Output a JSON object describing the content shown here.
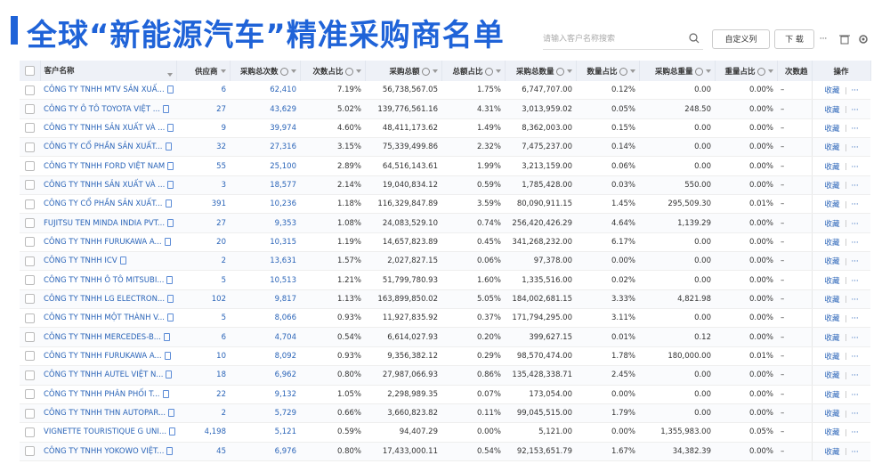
{
  "header": {
    "title": "全球“新能源汽车”精准采购商名单",
    "search_placeholder": "请输入客户名称搜索",
    "buttons": [
      "自定义列",
      "下 载",
      "···"
    ]
  },
  "table": {
    "columns": [
      "客户名称",
      "供应商",
      "采购总次数",
      "次数占比",
      "采购总额",
      "总额占比",
      "采购总数量",
      "数量占比",
      "采购总重量",
      "重量占比",
      "次数趋",
      "操作"
    ],
    "rows": [
      [
        "CÔNG TY TNHH MTV SẢN XUẤ...",
        "6",
        "62,410",
        "7.19%",
        "56,738,567.05",
        "1.75%",
        "6,747,707.00",
        "0.12%",
        "0.00",
        "0.00%",
        "–",
        "收藏",
        "···"
      ],
      [
        "CÔNG TY Ô TÔ TOYOTA VIỆT ...",
        "27",
        "43,629",
        "5.02%",
        "139,776,561.16",
        "4.31%",
        "3,013,959.02",
        "0.05%",
        "248.50",
        "0.00%",
        "–",
        "收藏",
        "···"
      ],
      [
        "CÔNG TY TNHH SẢN XUẤT VÀ ...",
        "9",
        "39,974",
        "4.60%",
        "48,411,173.62",
        "1.49%",
        "8,362,003.00",
        "0.15%",
        "0.00",
        "0.00%",
        "–",
        "收藏",
        "···"
      ],
      [
        "CÔNG TY CỔ PHẦN SẢN XUẤT...",
        "32",
        "27,316",
        "3.15%",
        "75,339,499.86",
        "2.32%",
        "7,475,237.00",
        "0.14%",
        "0.00",
        "0.00%",
        "–",
        "收藏",
        "···"
      ],
      [
        "CÔNG TY TNHH FORD VIỆT NAM",
        "55",
        "25,100",
        "2.89%",
        "64,516,143.61",
        "1.99%",
        "3,213,159.00",
        "0.06%",
        "0.00",
        "0.00%",
        "–",
        "收藏",
        "···"
      ],
      [
        "CÔNG TY TNHH SẢN XUẤT VÀ ...",
        "3",
        "18,577",
        "2.14%",
        "19,040,834.12",
        "0.59%",
        "1,785,428.00",
        "0.03%",
        "550.00",
        "0.00%",
        "–",
        "收藏",
        "···"
      ],
      [
        "CÔNG TY CỔ PHẦN SẢN XUẤT...",
        "391",
        "10,236",
        "1.18%",
        "116,329,847.89",
        "3.59%",
        "80,090,911.15",
        "1.45%",
        "295,509.30",
        "0.01%",
        "–",
        "收藏",
        "···"
      ],
      [
        "FUJITSU TEN MINDA INDIA PVT...",
        "27",
        "9,353",
        "1.08%",
        "24,083,529.10",
        "0.74%",
        "256,420,426.29",
        "4.64%",
        "1,139.29",
        "0.00%",
        "–",
        "收藏",
        "···"
      ],
      [
        "CÔNG TY TNHH FURUKAWA A...",
        "20",
        "10,315",
        "1.19%",
        "14,657,823.89",
        "0.45%",
        "341,268,232.00",
        "6.17%",
        "0.00",
        "0.00%",
        "–",
        "收藏",
        "···"
      ],
      [
        "CÔNG TY TNHH ICV",
        "2",
        "13,631",
        "1.57%",
        "2,027,827.15",
        "0.06%",
        "97,378.00",
        "0.00%",
        "0.00",
        "0.00%",
        "–",
        "收藏",
        "···"
      ],
      [
        "CÔNG TY TNHH Ô TÔ MITSUBI...",
        "5",
        "10,513",
        "1.21%",
        "51,799,780.93",
        "1.60%",
        "1,335,516.00",
        "0.02%",
        "0.00",
        "0.00%",
        "–",
        "收藏",
        "···"
      ],
      [
        "CÔNG TY TNHH LG ELECTRON...",
        "102",
        "9,817",
        "1.13%",
        "163,899,850.02",
        "5.05%",
        "184,002,681.15",
        "3.33%",
        "4,821.98",
        "0.00%",
        "–",
        "收藏",
        "···"
      ],
      [
        "CÔNG TY TNHH MỘT THÀNH V...",
        "5",
        "8,066",
        "0.93%",
        "11,927,835.92",
        "0.37%",
        "171,794,295.00",
        "3.11%",
        "0.00",
        "0.00%",
        "–",
        "收藏",
        "···"
      ],
      [
        "CÔNG TY TNHH MERCEDES-B...",
        "6",
        "4,704",
        "0.54%",
        "6,614,027.93",
        "0.20%",
        "399,627.15",
        "0.01%",
        "0.12",
        "0.00%",
        "–",
        "收藏",
        "···"
      ],
      [
        "CÔNG TY TNHH FURUKAWA A...",
        "10",
        "8,092",
        "0.93%",
        "9,356,382.12",
        "0.29%",
        "98,570,474.00",
        "1.78%",
        "180,000.00",
        "0.01%",
        "–",
        "收藏",
        "···"
      ],
      [
        "CÔNG TY TNHH AUTEL VIỆT N...",
        "18",
        "6,962",
        "0.80%",
        "27,987,066.93",
        "0.86%",
        "135,428,338.71",
        "2.45%",
        "0.00",
        "0.00%",
        "–",
        "收藏",
        "···"
      ],
      [
        "CÔNG TY TNHH PHÂN PHỐI T...",
        "22",
        "9,132",
        "1.05%",
        "2,298,989.35",
        "0.07%",
        "173,054.00",
        "0.00%",
        "0.00",
        "0.00%",
        "–",
        "收藏",
        "···"
      ],
      [
        "CÔNG TY TNHH THN AUTOPAR...",
        "2",
        "5,729",
        "0.66%",
        "3,660,823.82",
        "0.11%",
        "99,045,515.00",
        "1.79%",
        "0.00",
        "0.00%",
        "–",
        "收藏",
        "···"
      ],
      [
        "VIGNETTE TOURISTIQUE G UNI...",
        "4,198",
        "5,121",
        "0.59%",
        "94,407.29",
        "0.00%",
        "5,121.00",
        "0.00%",
        "1,355,983.00",
        "0.05%",
        "–",
        "收藏",
        "···"
      ],
      [
        "CÔNG TY TNHH YOKOWO VIỆT...",
        "45",
        "6,976",
        "0.80%",
        "17,433,000.11",
        "0.54%",
        "92,153,651.79",
        "1.67%",
        "34,382.39",
        "0.00%",
        "–",
        "收藏",
        "···"
      ]
    ]
  }
}
